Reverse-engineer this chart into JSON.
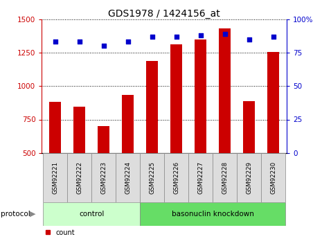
{
  "title": "GDS1978 / 1424156_at",
  "samples": [
    "GSM92221",
    "GSM92222",
    "GSM92223",
    "GSM92224",
    "GSM92225",
    "GSM92226",
    "GSM92227",
    "GSM92228",
    "GSM92229",
    "GSM92230"
  ],
  "counts": [
    880,
    845,
    700,
    935,
    1185,
    1310,
    1350,
    1430,
    885,
    1255
  ],
  "percentiles": [
    83,
    83,
    80,
    83,
    87,
    87,
    88,
    89,
    85,
    87
  ],
  "ylim_left": [
    500,
    1500
  ],
  "ylim_right": [
    0,
    100
  ],
  "yticks_left": [
    500,
    750,
    1000,
    1250,
    1500
  ],
  "yticks_right": [
    0,
    25,
    50,
    75,
    100
  ],
  "ytick_right_labels": [
    "0",
    "25",
    "50",
    "75",
    "100%"
  ],
  "bar_color": "#cc0000",
  "dot_color": "#0000cc",
  "control_color": "#ccffcc",
  "knockdown_color": "#66dd66",
  "bg_color": "#ffffff",
  "tick_area_color": "#dddddd",
  "left_axis_color": "#cc0000",
  "right_axis_color": "#0000cc",
  "n_control": 4,
  "bar_width": 0.5
}
